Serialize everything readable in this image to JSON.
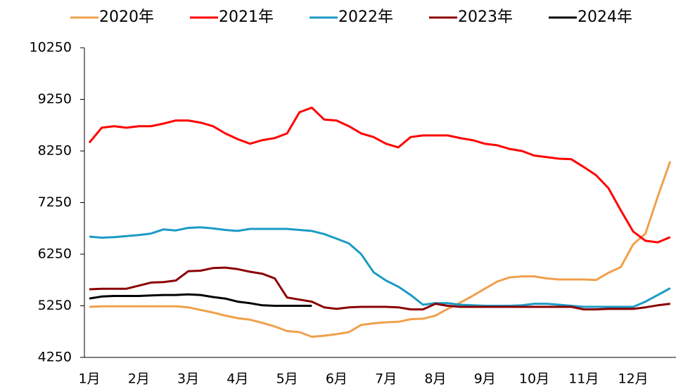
{
  "chart_data": {
    "type": "line",
    "categories": [
      "1月",
      null,
      null,
      null,
      "2月",
      null,
      null,
      null,
      "3月",
      null,
      null,
      null,
      "4月",
      null,
      null,
      null,
      "5月",
      null,
      null,
      null,
      "6月",
      null,
      null,
      null,
      "7月",
      null,
      null,
      null,
      "8月",
      null,
      null,
      null,
      "9月",
      null,
      null,
      null,
      "10月",
      null,
      null,
      null,
      "11月",
      null,
      null,
      null,
      "12月",
      null,
      null,
      null
    ],
    "series": [
      {
        "name": "2020年",
        "color": "#f0a04b",
        "values": [
          5230,
          5240,
          5240,
          5240,
          5240,
          5240,
          5240,
          5240,
          5220,
          5170,
          5120,
          5060,
          5010,
          4980,
          4920,
          4850,
          4760,
          4740,
          4650,
          4670,
          4700,
          4740,
          4880,
          4910,
          4930,
          4940,
          4990,
          5000,
          5060,
          5190,
          5310,
          5440,
          5580,
          5720,
          5800,
          5820,
          5820,
          5780,
          5760,
          5760,
          5760,
          5750,
          5890,
          6000,
          6440,
          6650,
          7370,
          8050
        ]
      },
      {
        "name": "2021年",
        "color": "#ff0000",
        "values": [
          8410,
          8700,
          8730,
          8700,
          8730,
          8730,
          8780,
          8840,
          8840,
          8800,
          8730,
          8590,
          8480,
          8390,
          8460,
          8500,
          8590,
          9000,
          9090,
          8860,
          8840,
          8730,
          8590,
          8520,
          8390,
          8320,
          8520,
          8550,
          8550,
          8550,
          8500,
          8460,
          8390,
          8360,
          8290,
          8250,
          8160,
          8130,
          8100,
          8090,
          7940,
          7780,
          7530,
          7100,
          6690,
          6510,
          6480,
          6580
        ]
      },
      {
        "name": "2022年",
        "color": "#1b9bc4",
        "values": [
          6590,
          6570,
          6580,
          6600,
          6620,
          6650,
          6730,
          6710,
          6760,
          6770,
          6750,
          6720,
          6700,
          6740,
          6740,
          6740,
          6740,
          6720,
          6700,
          6640,
          6550,
          6460,
          6250,
          5900,
          5740,
          5620,
          5460,
          5270,
          5300,
          5300,
          5270,
          5260,
          5250,
          5250,
          5250,
          5260,
          5290,
          5290,
          5270,
          5250,
          5230,
          5230,
          5230,
          5230,
          5230,
          5330,
          5460,
          5590
        ]
      },
      {
        "name": "2023年",
        "color": "#8b0000",
        "values": [
          5570,
          5580,
          5580,
          5580,
          5640,
          5700,
          5710,
          5740,
          5920,
          5930,
          5980,
          5990,
          5960,
          5910,
          5870,
          5780,
          5410,
          5370,
          5330,
          5220,
          5190,
          5220,
          5230,
          5230,
          5230,
          5220,
          5180,
          5180,
          5290,
          5250,
          5230,
          5230,
          5230,
          5230,
          5230,
          5230,
          5230,
          5230,
          5230,
          5230,
          5180,
          5180,
          5190,
          5190,
          5190,
          5220,
          5260,
          5290
        ]
      },
      {
        "name": "2024年",
        "color": "#000000",
        "values": [
          5390,
          5430,
          5440,
          5440,
          5440,
          5450,
          5460,
          5460,
          5470,
          5460,
          5420,
          5390,
          5330,
          5300,
          5260,
          5250,
          5250,
          5250,
          5250,
          null,
          null,
          null,
          null,
          null,
          null,
          null,
          null,
          null,
          null,
          null,
          null,
          null,
          null,
          null,
          null,
          null,
          null,
          null,
          null,
          null,
          null,
          null,
          null,
          null,
          null,
          null,
          null,
          null
        ]
      }
    ],
    "ylim": [
      4250,
      10250
    ],
    "yticks": [
      4250,
      5250,
      6250,
      7250,
      8250,
      9250,
      10250
    ]
  }
}
